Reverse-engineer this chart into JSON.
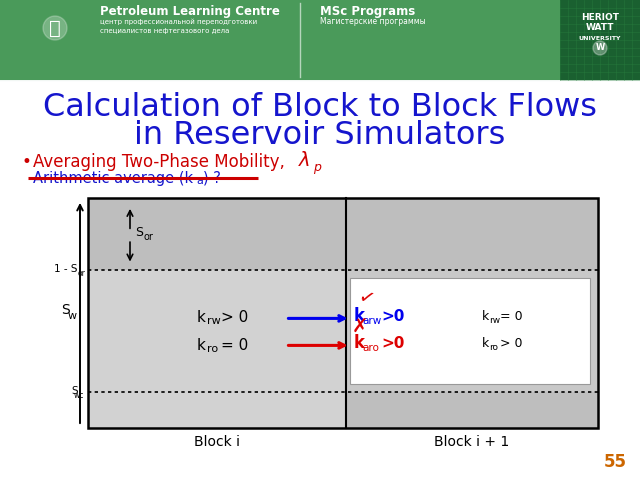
{
  "title_line1": "Calculation of Block to Block Flows",
  "title_line2": "in Reservoir Simulators",
  "title_color": "#1515CD",
  "title_fontsize": 23,
  "bg_color": "#FFFFFF",
  "slide_number": "55",
  "slide_num_color": "#CC6600",
  "bullet_color": "#CC0000",
  "sub_bullet_color": "#1515CD",
  "strikethrough_color": "#CC0000",
  "block_i_label": "Block i",
  "block_i1_label": "Block i + 1",
  "grid_bg_dark": "#C0C0C0",
  "grid_bg_light": "#D8D8D8",
  "grid_bg_white": "#FFFFFF",
  "arrow_blue": "#0000EE",
  "arrow_red": "#DD0000",
  "header_green1": "#4A9A5A",
  "header_green2": "#3A8A4A",
  "hw_green": "#1A6A2A"
}
